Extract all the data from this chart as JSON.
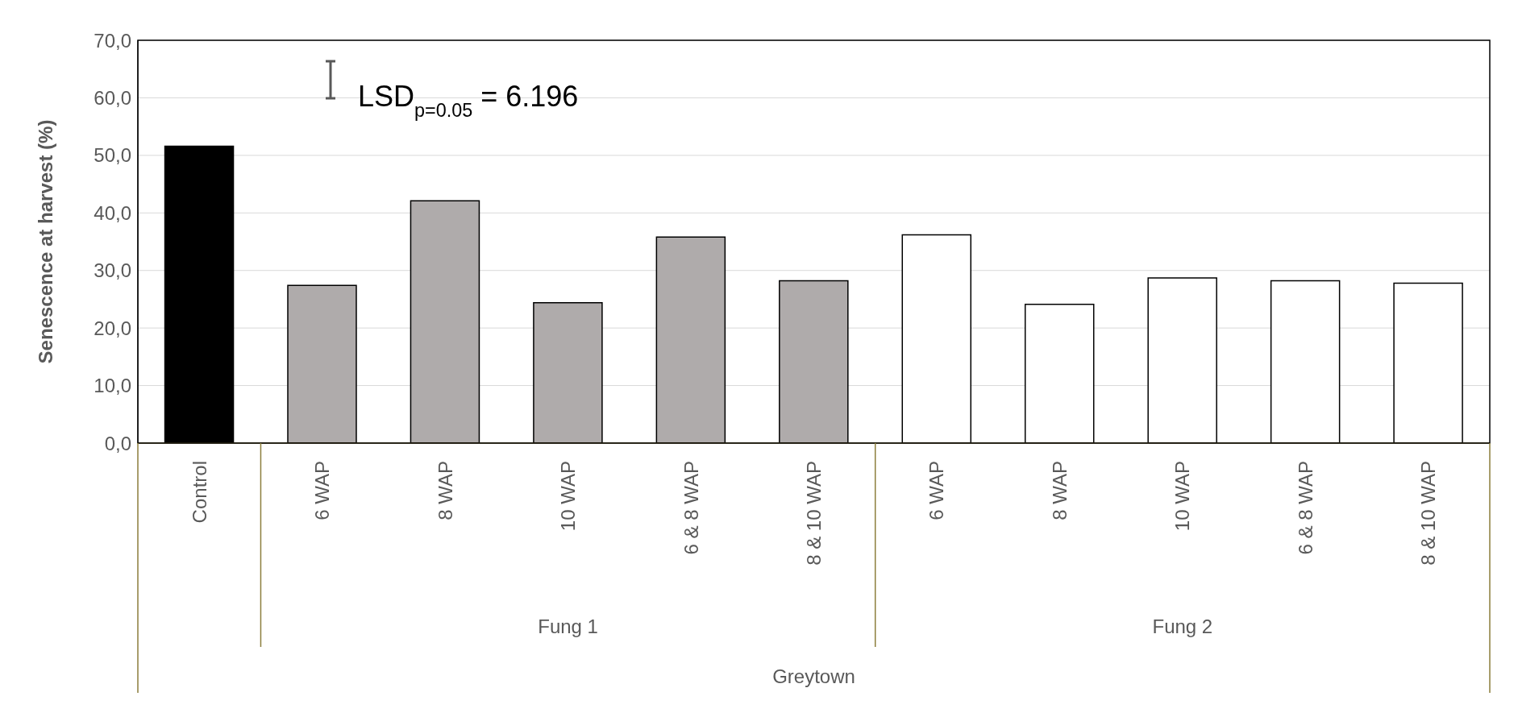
{
  "chart_data": {
    "type": "bar",
    "ylabel": "Senescence at harvest (%)",
    "categories": [
      "Control",
      "6 WAP",
      "8 WAP",
      "10 WAP",
      "6 & 8 WAP",
      "8 & 10 WAP",
      "6 WAP",
      "8 WAP",
      "10 WAP",
      "6 & 8 WAP",
      "8 & 10 WAP"
    ],
    "values": [
      51.6,
      27.4,
      42.1,
      24.4,
      35.8,
      28.2,
      36.2,
      24.1,
      28.7,
      28.2,
      27.8
    ],
    "colors": [
      "#000000",
      "#afabab",
      "#afabab",
      "#afabab",
      "#afabab",
      "#afabab",
      "#ffffff",
      "#ffffff",
      "#ffffff",
      "#ffffff",
      "#ffffff"
    ],
    "ylim": [
      0,
      70
    ],
    "yticks": [
      {
        "value": 0,
        "label": "0,0"
      },
      {
        "value": 10,
        "label": "10,0"
      },
      {
        "value": 20,
        "label": "20,0"
      },
      {
        "value": 30,
        "label": "30,0"
      },
      {
        "value": 40,
        "label": "40,0"
      },
      {
        "value": 50,
        "label": "50,0"
      },
      {
        "value": 60,
        "label": "60,0"
      },
      {
        "value": 70,
        "label": "70,0"
      }
    ],
    "grid": "y",
    "annotations": [
      "Fung 1",
      "Fung 2",
      "Greytown",
      "LSD$_{p=0.05}$ = 6.196"
    ]
  }
}
